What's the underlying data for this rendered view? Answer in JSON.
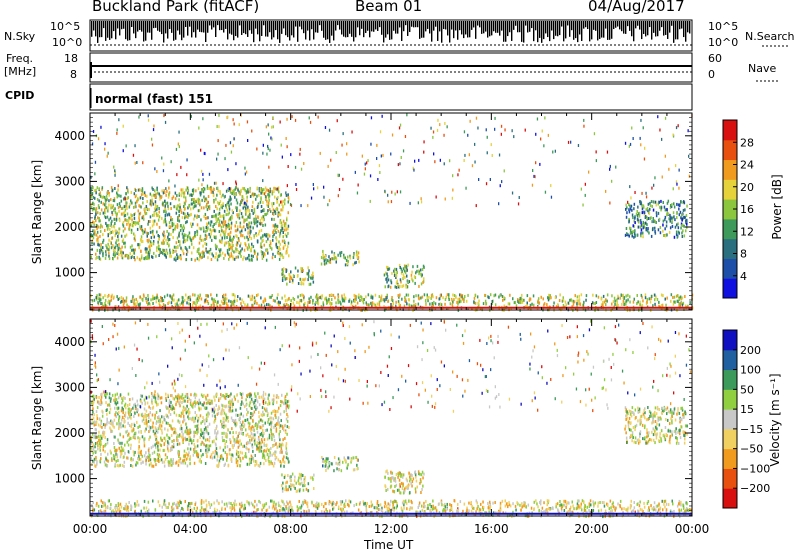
{
  "header": {
    "title": "Buckland Park (fitACF)",
    "beam": "Beam 01",
    "date": "04/Aug/2017"
  },
  "left_labels": {
    "nsky": "N.Sky",
    "nsky_top": "10^5",
    "nsky_bottom": "10^0",
    "freq_line1": "Freq.",
    "freq_line2": "[MHz]",
    "freq_top": "18",
    "freq_bottom": "8",
    "cpid": "CPID"
  },
  "right_labels": {
    "nsearch_top": "10^5",
    "nsearch_bottom": "10^0",
    "nsearch": "N.Search",
    "nave_top": "60",
    "nave_bottom": "0",
    "nave": "Nave"
  },
  "cpid_text": "normal (fast) 151",
  "chart_data": [
    {
      "type": "heatmap",
      "name": "power",
      "ylabel": "Slant Range [km]",
      "ylim": [
        180,
        4500
      ],
      "yticks": [
        "1000",
        "2000",
        "3000",
        "4000"
      ],
      "xlim": [
        0,
        24
      ],
      "colorbar": {
        "label": "Power [dB]",
        "ticks": [
          "28",
          "24",
          "20",
          "16",
          "12",
          "8",
          "4"
        ],
        "range": [
          0,
          30
        ]
      },
      "scatter_regions": [
        {
          "t": [
            0.0,
            7.9
          ],
          "r": [
            1300,
            2900
          ],
          "value": 15
        },
        {
          "t": [
            7.6,
            8.9
          ],
          "r": [
            750,
            1150
          ],
          "value": 14
        },
        {
          "t": [
            9.2,
            10.7
          ],
          "r": [
            1200,
            1500
          ],
          "value": 14
        },
        {
          "t": [
            11.7,
            13.3
          ],
          "r": [
            700,
            1200
          ],
          "value": 14
        },
        {
          "t": [
            21.3,
            23.8
          ],
          "r": [
            1800,
            2600
          ],
          "value": 9
        },
        {
          "t": [
            0.0,
            24.0
          ],
          "r": [
            200,
            550
          ],
          "value": 16
        }
      ]
    },
    {
      "type": "heatmap",
      "name": "velocity",
      "ylabel": "Slant Range [km]",
      "ylim": [
        180,
        4500
      ],
      "yticks": [
        "1000",
        "2000",
        "3000",
        "4000"
      ],
      "xlim": [
        0,
        24
      ],
      "xticks": [
        "00:00",
        "04:00",
        "08:00",
        "12:00",
        "16:00",
        "20:00",
        "00:00"
      ],
      "xlabel": "Time UT",
      "colorbar": {
        "label": "Velocity [m s⁻¹]",
        "ticks": [
          "200",
          "100",
          "50",
          "15",
          "−15",
          "−50",
          "−100",
          "−200"
        ],
        "range": [
          -250,
          250
        ]
      },
      "scatter_regions": [
        {
          "t": [
            0.0,
            7.9
          ],
          "r": [
            1300,
            2900
          ],
          "value": 0
        },
        {
          "t": [
            7.6,
            8.9
          ],
          "r": [
            750,
            1150
          ],
          "value": 20
        },
        {
          "t": [
            9.2,
            10.7
          ],
          "r": [
            1200,
            1500
          ],
          "value": 30
        },
        {
          "t": [
            11.7,
            13.3
          ],
          "r": [
            700,
            1200
          ],
          "value": -30
        },
        {
          "t": [
            21.3,
            23.8
          ],
          "r": [
            1800,
            2600
          ],
          "value": 0
        },
        {
          "t": [
            0.0,
            24.0
          ],
          "r": [
            200,
            550
          ],
          "value": -20
        }
      ]
    }
  ],
  "colors": {
    "power_scale": [
      "#1010e0",
      "#1e4fa8",
      "#2a6f80",
      "#3d9a5a",
      "#8cc63e",
      "#e6d23a",
      "#f09a1e",
      "#e85010",
      "#d81010"
    ],
    "velocity_scale": [
      "#d81010",
      "#e85010",
      "#f09a1e",
      "#f0d060",
      "#c8c8c8",
      "#90d040",
      "#3c9a5a",
      "#2060a0",
      "#1010c0"
    ]
  }
}
